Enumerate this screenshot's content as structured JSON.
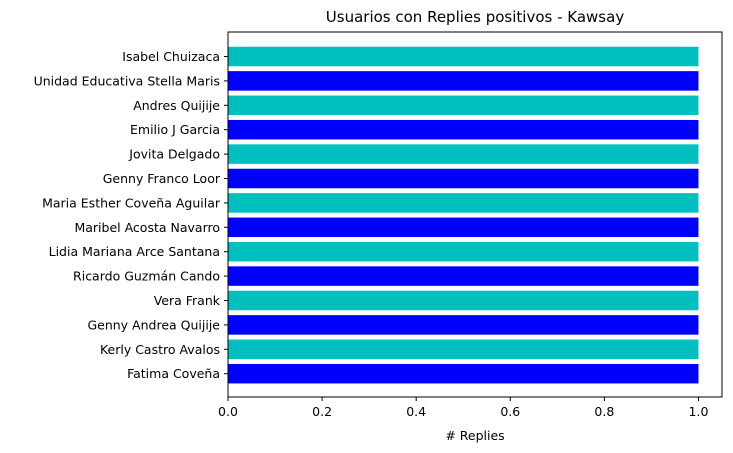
{
  "chart_data": {
    "type": "bar",
    "orientation": "horizontal",
    "title": "Usuarios con Replies positivos - Kawsay",
    "xlabel": "# Replies",
    "ylabel": "",
    "xlim": [
      0,
      1.05
    ],
    "xticks": [
      "0.0",
      "0.2",
      "0.4",
      "0.6",
      "0.8",
      "1.0"
    ],
    "grid": false,
    "categories": [
      "Isabel Chuizaca",
      "Unidad Educativa Stella Maris",
      "Andres Quijije",
      "Emilio J Garcia",
      "Jovita Delgado",
      "Genny Franco Loor",
      "Maria Esther Coveña Aguilar",
      "Maribel Acosta Navarro",
      "Lidia Mariana Arce Santana",
      "Ricardo Guzmán Cando",
      "Vera Frank",
      "Genny Andrea Quijije",
      "Kerly Castro Avalos",
      "Fatima Coveña"
    ],
    "values": [
      1,
      1,
      1,
      1,
      1,
      1,
      1,
      1,
      1,
      1,
      1,
      1,
      1,
      1
    ],
    "bar_colors": [
      "#00bfbf",
      "#0000ff"
    ]
  }
}
